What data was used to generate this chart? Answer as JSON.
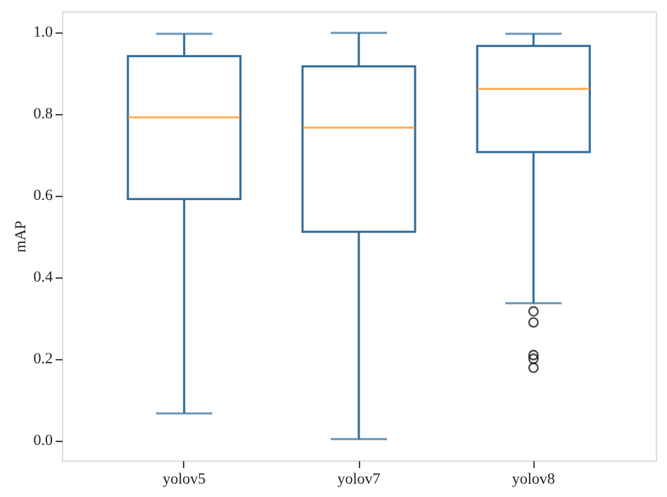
{
  "chart_data": {
    "type": "box",
    "ylabel": "mAP",
    "categories": [
      "yolov5",
      "yolov7",
      "yolov8"
    ],
    "color": "#2f6b9a",
    "boxes": [
      {
        "low": 0.065,
        "q1": 0.59,
        "median": 0.79,
        "q3": 0.94,
        "high": 0.995
      },
      {
        "low": 0.002,
        "q1": 0.51,
        "median": 0.765,
        "q3": 0.915,
        "high": 0.997
      },
      {
        "low": 0.335,
        "q1": 0.705,
        "median": 0.86,
        "q3": 0.965,
        "high": 0.995,
        "outliers": [
          0.315,
          0.288,
          0.208,
          0.199,
          0.177
        ]
      }
    ],
    "ylim": [
      -0.05,
      1.05
    ],
    "yticks": [
      {
        "value": 0,
        "label": "0.0"
      },
      0.2,
      0.4,
      0.6,
      0.8,
      {
        "value": 1,
        "label": "1.0"
      }
    ],
    "grid": false
  }
}
